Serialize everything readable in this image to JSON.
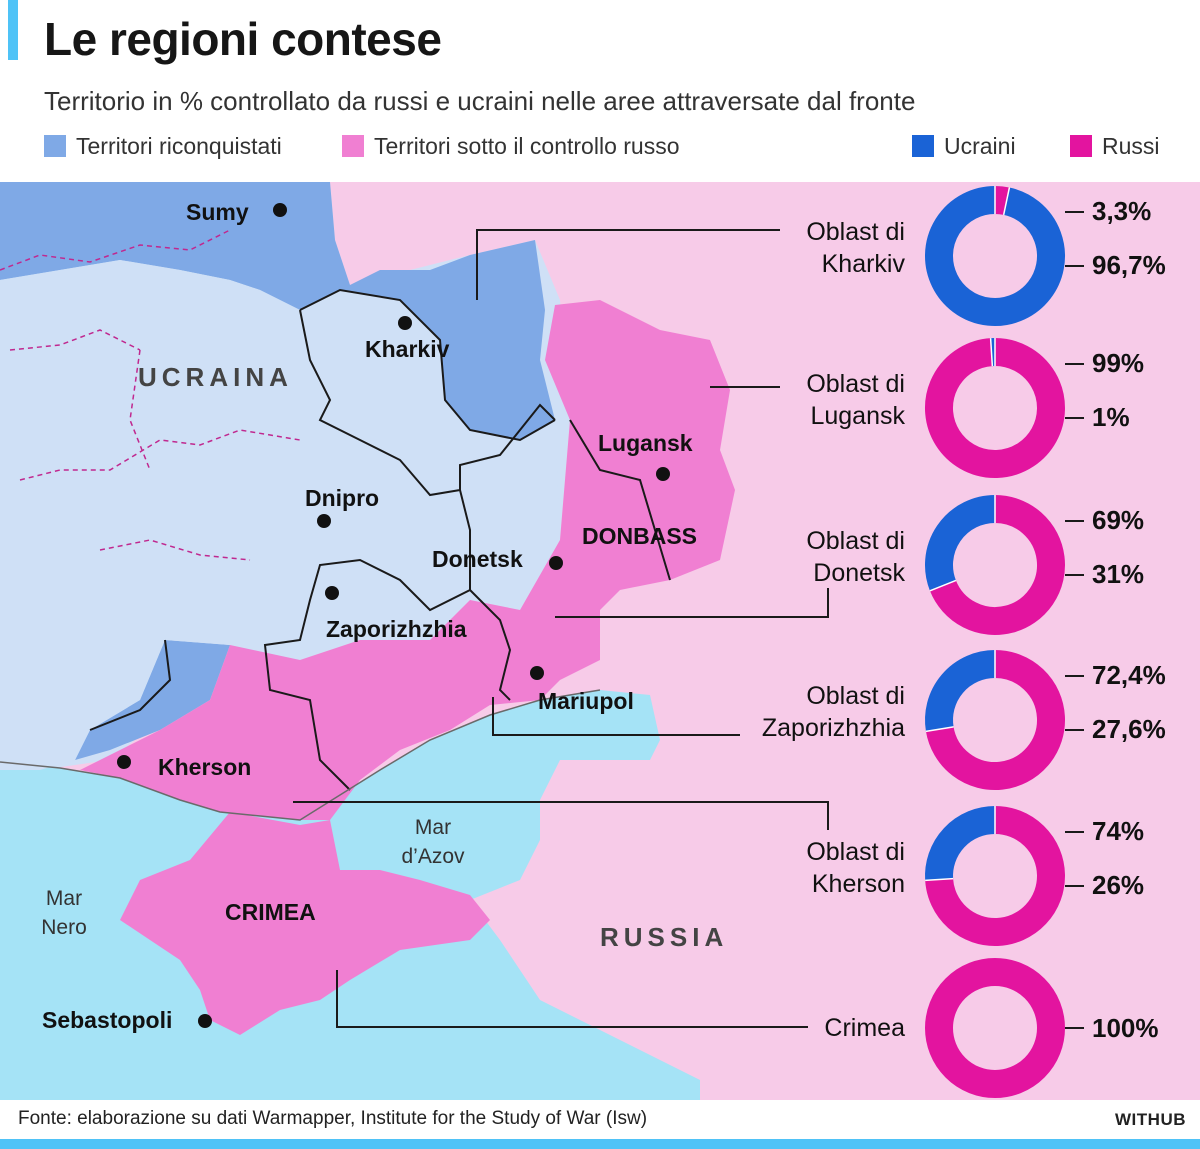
{
  "header": {
    "title": "Le regioni contese",
    "subtitle": "Territorio in % controllato da russi e ucraini nelle aree attraversate dal fronte"
  },
  "legend": {
    "retaken": {
      "label": "Territori riconquistati",
      "color": "#7fa9e6"
    },
    "russian_control": {
      "label": "Territori sotto il controllo russo",
      "color": "#f07fd2"
    },
    "ukrainians": {
      "label": "Ucraini",
      "color": "#1a63d6"
    },
    "russians": {
      "label": "Russi",
      "color": "#e3149f"
    }
  },
  "colors": {
    "ukraine_land": "#cfe0f6",
    "retaken": "#7fa9e6",
    "occupied": "#f07fd2",
    "russia_land": "#f7cbe8",
    "sea": "#a5e3f6"
  },
  "map": {
    "country_ukraine": "UCRAINA",
    "country_russia": "RUSSIA",
    "region_donbass": "DONBASS",
    "region_crimea": "CRIMEA",
    "sea_black": [
      "Mar",
      "Nero"
    ],
    "sea_azov": [
      "Mar",
      "d’Azov"
    ],
    "cities": {
      "sumy": "Sumy",
      "kharkiv": "Kharkiv",
      "lugansk": "Lugansk",
      "dnipro": "Dnipro",
      "donetsk": "Donetsk",
      "zaporizhzhia": "Zaporizhzhia",
      "mariupol": "Mariupol",
      "kherson": "Kherson",
      "sebastopoli": "Sebastopoli"
    }
  },
  "oblasts": [
    {
      "label": [
        "Oblast di",
        "Kharkiv"
      ],
      "russi_pct": 3.3,
      "ucraini_pct": 96.7,
      "russi_label": "3,3%",
      "ucraini_label": "96,7%"
    },
    {
      "label": [
        "Oblast di",
        "Lugansk"
      ],
      "russi_pct": 99,
      "ucraini_pct": 1,
      "russi_label": "99%",
      "ucraini_label": "1%"
    },
    {
      "label": [
        "Oblast di",
        "Donetsk"
      ],
      "russi_pct": 69,
      "ucraini_pct": 31,
      "russi_label": "69%",
      "ucraini_label": "31%"
    },
    {
      "label": [
        "Oblast di",
        "Zaporizhzhia"
      ],
      "russi_pct": 72.4,
      "ucraini_pct": 27.6,
      "russi_label": "72,4%",
      "ucraini_label": "27,6%"
    },
    {
      "label": [
        "Oblast di",
        "Kherson"
      ],
      "russi_pct": 74,
      "ucraini_pct": 26,
      "russi_label": "74%",
      "ucraini_label": "26%"
    },
    {
      "label": [
        "Crimea"
      ],
      "russi_pct": 100,
      "ucraini_pct": 0,
      "russi_label": "100%",
      "ucraini_label": ""
    }
  ],
  "footer": {
    "source": "Fonte: elaborazione su dati Warmapper, Institute for the Study of War (Isw)",
    "brand": "WITHUB"
  }
}
